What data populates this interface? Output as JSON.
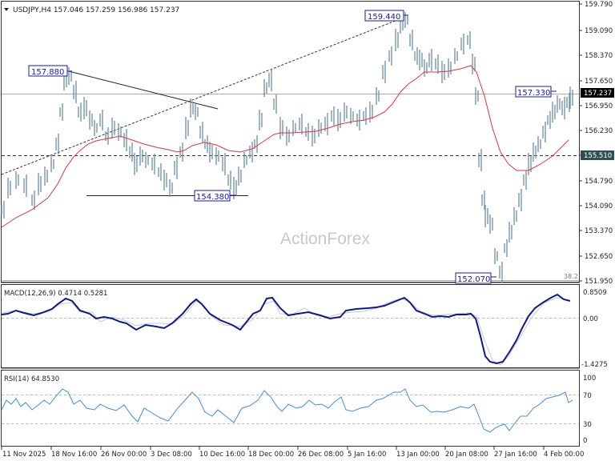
{
  "header": {
    "symbol_line": "USDJPY,H4  157.046 157.259 156.986 157.237",
    "collapse_icon": "triangle-down-icon"
  },
  "watermark": "ActionForex",
  "price_axis": {
    "ticks": [
      "159.790",
      "159.090",
      "158.370",
      "157.650",
      "156.950",
      "156.230",
      "155.510",
      "154.790",
      "154.090",
      "153.370",
      "152.650",
      "151.950"
    ],
    "current_price": "157.237",
    "support_label": "155.510",
    "fib_label": "38.2"
  },
  "annotations": {
    "high_1": "157.880",
    "high_2": "159.440",
    "low_1": "154.380",
    "low_2": "152.070",
    "high_3": "157.330"
  },
  "macd": {
    "title": "MACD(12,26,9) 0.4714 0.5281",
    "ticks": [
      "0.8509",
      "0.00",
      "-1.4275"
    ]
  },
  "rsi": {
    "title": "RSI(14) 64.8530",
    "ticks": [
      "100",
      "70",
      "30",
      "0"
    ]
  },
  "time_axis": {
    "ticks": [
      "11 Nov 2025",
      "18 Nov 16:00",
      "26 Nov 00:00",
      "3 Dec 08:00",
      "10 Dec 16:00",
      "18 Dec 00:00",
      "26 Dec 08:00",
      "5 Jan 16:00",
      "13 Jan 00:00",
      "20 Jan 08:00",
      "27 Jan 16:00",
      "4 Feb 00:00"
    ]
  },
  "chart_data": [
    {
      "type": "bar",
      "title": "USDJPY,H4",
      "ohlc_last": {
        "open": 157.046,
        "high": 157.259,
        "low": 156.986,
        "close": 157.237
      },
      "x": [
        "11 Nov 2025",
        "18 Nov 16:00",
        "26 Nov 00:00",
        "3 Dec 08:00",
        "10 Dec 16:00",
        "18 Dec 00:00",
        "26 Dec 08:00",
        "5 Jan 16:00",
        "13 Jan 00:00",
        "20 Jan 08:00",
        "27 Jan 16:00",
        "4 Feb 00:00"
      ],
      "series": [
        {
          "name": "Price (approx close)",
          "values": [
            154.3,
            157.2,
            156.1,
            155.2,
            154.9,
            157.0,
            156.2,
            156.6,
            158.9,
            158.2,
            153.3,
            157.0
          ]
        },
        {
          "name": "Moving Average (red)",
          "values": [
            153.6,
            155.6,
            156.1,
            155.7,
            155.5,
            156.0,
            156.1,
            156.5,
            157.4,
            158.1,
            155.2,
            155.9
          ]
        }
      ],
      "levels": {
        "horizontal_support": 155.51,
        "current": 157.237,
        "fib_38_2": "38.2"
      },
      "annotations": [
        {
          "label": "157.880",
          "type": "high"
        },
        {
          "label": "154.380",
          "type": "low"
        },
        {
          "label": "159.440",
          "type": "high"
        },
        {
          "label": "152.070",
          "type": "low"
        },
        {
          "label": "157.330",
          "type": "high"
        }
      ],
      "ylim": [
        151.95,
        159.79
      ],
      "yticks": [
        159.79,
        159.09,
        158.37,
        157.65,
        156.95,
        156.23,
        155.51,
        154.79,
        154.09,
        153.37,
        152.65,
        151.95
      ],
      "grid": false
    },
    {
      "type": "line",
      "title": "MACD(12,26,9) 0.4714 0.5281",
      "x": [
        "11 Nov 2025",
        "18 Nov 16:00",
        "26 Nov 00:00",
        "3 Dec 08:00",
        "10 Dec 16:00",
        "18 Dec 00:00",
        "26 Dec 08:00",
        "5 Jan 16:00",
        "13 Jan 00:00",
        "20 Jan 08:00",
        "27 Jan 16:00",
        "4 Feb 00:00"
      ],
      "series": [
        {
          "name": "MACD",
          "values": [
            0.2,
            0.8,
            0.0,
            -0.3,
            -0.4,
            0.7,
            -0.05,
            0.1,
            0.8,
            0.05,
            -1.4275,
            0.47
          ]
        },
        {
          "name": "Signal",
          "values": [
            0.15,
            0.6,
            0.1,
            -0.2,
            -0.3,
            0.5,
            0.0,
            0.05,
            0.7,
            0.0,
            -1.3,
            0.53
          ]
        }
      ],
      "ylim": [
        -1.4275,
        0.8509
      ],
      "yticks": [
        0.8509,
        0.0,
        -1.4275
      ]
    },
    {
      "type": "line",
      "title": "RSI(14) 64.8530",
      "x": [
        "11 Nov 2025",
        "18 Nov 16:00",
        "26 Nov 00:00",
        "3 Dec 08:00",
        "10 Dec 16:00",
        "18 Dec 00:00",
        "26 Dec 08:00",
        "5 Jan 16:00",
        "13 Jan 00:00",
        "20 Jan 08:00",
        "27 Jan 16:00",
        "4 Feb 00:00"
      ],
      "series": [
        {
          "name": "RSI(14)",
          "values": [
            55,
            78,
            50,
            40,
            36,
            75,
            52,
            55,
            78,
            50,
            22,
            65
          ]
        }
      ],
      "ylim": [
        0,
        100
      ],
      "yticks": [
        100,
        70,
        30,
        0
      ],
      "levels": [
        70,
        30
      ]
    }
  ]
}
